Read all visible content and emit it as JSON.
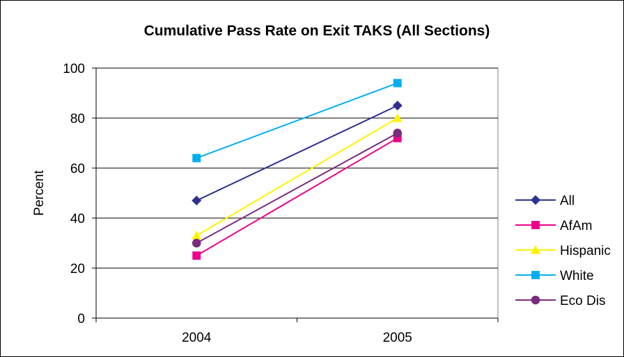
{
  "chart_data": {
    "type": "line",
    "title": "Cumulative Pass Rate on Exit TAKS (All Sections)",
    "xlabel": "",
    "ylabel": "Percent",
    "categories": [
      "2004",
      "2005"
    ],
    "ylim": [
      0,
      100
    ],
    "yticks": [
      0,
      20,
      40,
      60,
      80,
      100
    ],
    "grid": "horizontal",
    "legend": "right",
    "series": [
      {
        "name": "All",
        "values": [
          47,
          85
        ],
        "color": "#2E3192",
        "marker": "diamond"
      },
      {
        "name": "AfAm",
        "values": [
          25,
          72
        ],
        "color": "#EC008C",
        "marker": "square"
      },
      {
        "name": "Hispanic",
        "values": [
          33,
          80
        ],
        "color": "#FFF200",
        "marker": "triangle"
      },
      {
        "name": "White",
        "values": [
          64,
          94
        ],
        "color": "#00AEEF",
        "marker": "square"
      },
      {
        "name": "Eco Dis",
        "values": [
          30,
          74
        ],
        "color": "#7B2B7D",
        "marker": "circle"
      }
    ]
  }
}
